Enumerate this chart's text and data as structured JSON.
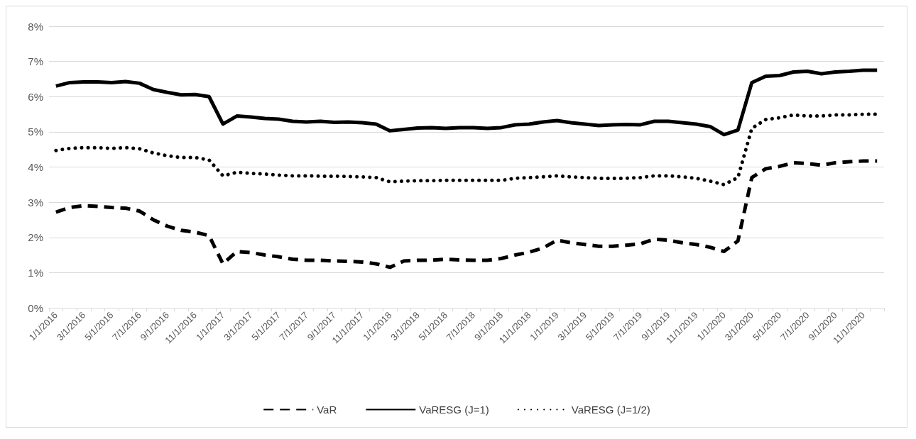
{
  "chart_data": {
    "type": "line",
    "categories": [
      "1/1/2016",
      null,
      "3/1/2016",
      null,
      "5/1/2016",
      null,
      "7/1/2016",
      null,
      "9/1/2016",
      null,
      "11/1/2016",
      null,
      "1/1/2017",
      null,
      "3/1/2017",
      null,
      "5/1/2017",
      null,
      "7/1/2017",
      null,
      "9/1/2017",
      null,
      "11/1/2017",
      null,
      "1/1/2018",
      null,
      "3/1/2018",
      null,
      "5/1/2018",
      null,
      "7/1/2018",
      null,
      "9/1/2018",
      null,
      "11/1/2018",
      null,
      "1/1/2019",
      null,
      "3/1/2019",
      null,
      "5/1/2019",
      null,
      "7/1/2019",
      null,
      "9/1/2019",
      null,
      "11/1/2019",
      null,
      "1/1/2020",
      null,
      "3/1/2020",
      null,
      "5/1/2020",
      null,
      "7/1/2020",
      null,
      "9/1/2020",
      null,
      "11/1/2020",
      null
    ],
    "series": [
      {
        "name": "VaR",
        "color": "#000000",
        "line_style": "dashed",
        "values": [
          2.72,
          2.85,
          2.9,
          2.88,
          2.85,
          2.83,
          2.75,
          2.5,
          2.32,
          2.2,
          2.15,
          2.05,
          1.25,
          1.6,
          1.57,
          1.5,
          1.45,
          1.38,
          1.35,
          1.35,
          1.33,
          1.32,
          1.3,
          1.25,
          1.15,
          1.33,
          1.35,
          1.35,
          1.38,
          1.36,
          1.35,
          1.35,
          1.4,
          1.5,
          1.58,
          1.7,
          1.92,
          1.85,
          1.8,
          1.75,
          1.75,
          1.78,
          1.82,
          1.95,
          1.92,
          1.85,
          1.8,
          1.72,
          1.6,
          1.9,
          3.7,
          3.95,
          4.02,
          4.12,
          4.1,
          4.05,
          4.12,
          4.15,
          4.17,
          4.17
        ]
      },
      {
        "name": "VaRESG (J=1)",
        "color": "#000000",
        "line_style": "solid",
        "values": [
          6.3,
          6.4,
          6.42,
          6.42,
          6.4,
          6.43,
          6.38,
          6.2,
          6.12,
          6.05,
          6.06,
          6.0,
          5.22,
          5.45,
          5.42,
          5.38,
          5.36,
          5.3,
          5.28,
          5.3,
          5.27,
          5.28,
          5.26,
          5.22,
          5.03,
          5.07,
          5.11,
          5.12,
          5.1,
          5.12,
          5.12,
          5.1,
          5.12,
          5.2,
          5.22,
          5.28,
          5.32,
          5.26,
          5.22,
          5.18,
          5.2,
          5.21,
          5.2,
          5.3,
          5.3,
          5.26,
          5.22,
          5.15,
          4.92,
          5.05,
          6.4,
          6.58,
          6.6,
          6.7,
          6.72,
          6.65,
          6.7,
          6.72,
          6.75,
          6.75
        ]
      },
      {
        "name": "VaRESG (J=1/2)",
        "color": "#000000",
        "line_style": "dotted",
        "values": [
          4.47,
          4.53,
          4.55,
          4.55,
          4.53,
          4.55,
          4.52,
          4.4,
          4.32,
          4.27,
          4.27,
          4.2,
          3.75,
          3.85,
          3.82,
          3.8,
          3.77,
          3.75,
          3.75,
          3.74,
          3.74,
          3.73,
          3.72,
          3.7,
          3.58,
          3.6,
          3.61,
          3.61,
          3.62,
          3.62,
          3.62,
          3.62,
          3.62,
          3.68,
          3.7,
          3.72,
          3.75,
          3.72,
          3.7,
          3.68,
          3.68,
          3.68,
          3.7,
          3.75,
          3.75,
          3.72,
          3.68,
          3.6,
          3.5,
          3.7,
          5.1,
          5.35,
          5.4,
          5.48,
          5.45,
          5.45,
          5.48,
          5.48,
          5.5,
          5.5
        ]
      }
    ],
    "ylim": [
      0,
      8
    ],
    "yticks": [
      {
        "value": 0,
        "label": "0%"
      },
      {
        "value": 1,
        "label": "1%"
      },
      {
        "value": 2,
        "label": "2%"
      },
      {
        "value": 3,
        "label": "3%"
      },
      {
        "value": 4,
        "label": "4%"
      },
      {
        "value": 5,
        "label": "5%"
      },
      {
        "value": 6,
        "label": "6%"
      },
      {
        "value": 7,
        "label": "7%"
      },
      {
        "value": 8,
        "label": "8%"
      }
    ],
    "grid": "y",
    "legend": "bottom",
    "marker": "none"
  }
}
